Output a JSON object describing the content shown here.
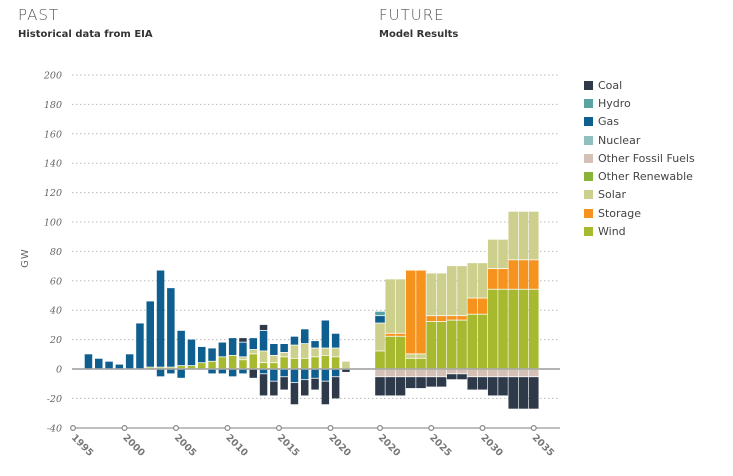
{
  "headings": {
    "past_title": "PAST",
    "past_subtitle": "Historical data from EIA",
    "future_title": "FUTURE",
    "future_subtitle": "Model Results"
  },
  "colors": {
    "Coal": "#2e3a4a",
    "Hydro": "#5aa3a3",
    "Gas": "#0e5e8f",
    "Nuclear": "#8fbfbf",
    "Other Fossil Fuels": "#d4c0b4",
    "Other Renewable": "#8ab33a",
    "Solar": "#cdd08c",
    "Storage": "#f5931e",
    "Wind": "#a7b92e"
  },
  "chart_data": {
    "type": "bar",
    "stacked": true,
    "ylabel": "GW",
    "ylim": [
      -40,
      200
    ],
    "yticks": [
      -40,
      -20,
      0,
      20,
      40,
      60,
      80,
      100,
      120,
      140,
      160,
      180,
      200
    ],
    "grid": true,
    "legend_position": "right",
    "legend": [
      "Coal",
      "Hydro",
      "Gas",
      "Nuclear",
      "Other Fossil Fuels",
      "Other Renewable",
      "Solar",
      "Storage",
      "Wind"
    ],
    "xticks_past": [
      1995,
      2000,
      2005,
      2010,
      2015,
      2020
    ],
    "xticks_future": [
      2020,
      2025,
      2030,
      2035
    ],
    "past": [
      {
        "year": 1996,
        "pos": [
          {
            "s": "Gas",
            "v": 10
          }
        ],
        "neg": []
      },
      {
        "year": 1997,
        "pos": [
          {
            "s": "Gas",
            "v": 7
          }
        ],
        "neg": []
      },
      {
        "year": 1998,
        "pos": [
          {
            "s": "Gas",
            "v": 5
          }
        ],
        "neg": []
      },
      {
        "year": 1999,
        "pos": [
          {
            "s": "Gas",
            "v": 3
          }
        ],
        "neg": []
      },
      {
        "year": 2000,
        "pos": [
          {
            "s": "Gas",
            "v": 10
          }
        ],
        "neg": []
      },
      {
        "year": 2001,
        "pos": [
          {
            "s": "Gas",
            "v": 31
          }
        ],
        "neg": []
      },
      {
        "year": 2002,
        "pos": [
          {
            "s": "Wind",
            "v": 1
          },
          {
            "s": "Gas",
            "v": 45
          }
        ],
        "neg": []
      },
      {
        "year": 2003,
        "pos": [
          {
            "s": "Wind",
            "v": 1
          },
          {
            "s": "Gas",
            "v": 66
          }
        ],
        "neg": [
          {
            "s": "Gas",
            "v": 5
          }
        ]
      },
      {
        "year": 2004,
        "pos": [
          {
            "s": "Wind",
            "v": 1
          },
          {
            "s": "Gas",
            "v": 54
          }
        ],
        "neg": [
          {
            "s": "Gas",
            "v": 3
          }
        ]
      },
      {
        "year": 2005,
        "pos": [
          {
            "s": "Wind",
            "v": 2
          },
          {
            "s": "Gas",
            "v": 24
          }
        ],
        "neg": [
          {
            "s": "Gas",
            "v": 6
          }
        ]
      },
      {
        "year": 2006,
        "pos": [
          {
            "s": "Wind",
            "v": 2
          },
          {
            "s": "Gas",
            "v": 18
          }
        ],
        "neg": []
      },
      {
        "year": 2007,
        "pos": [
          {
            "s": "Wind",
            "v": 4
          },
          {
            "s": "Gas",
            "v": 11
          }
        ],
        "neg": []
      },
      {
        "year": 2008,
        "pos": [
          {
            "s": "Wind",
            "v": 5
          },
          {
            "s": "Gas",
            "v": 9
          }
        ],
        "neg": [
          {
            "s": "Gas",
            "v": 3
          }
        ]
      },
      {
        "year": 2009,
        "pos": [
          {
            "s": "Wind",
            "v": 8
          },
          {
            "s": "Gas",
            "v": 10
          }
        ],
        "neg": [
          {
            "s": "Gas",
            "v": 3
          }
        ]
      },
      {
        "year": 2010,
        "pos": [
          {
            "s": "Wind",
            "v": 9
          },
          {
            "s": "Gas",
            "v": 12
          }
        ],
        "neg": [
          {
            "s": "Gas",
            "v": 5
          }
        ]
      },
      {
        "year": 2011,
        "pos": [
          {
            "s": "Wind",
            "v": 6
          },
          {
            "s": "Solar",
            "v": 2
          },
          {
            "s": "Gas",
            "v": 10
          },
          {
            "s": "Coal",
            "v": 3
          }
        ],
        "neg": [
          {
            "s": "Gas",
            "v": 3
          }
        ]
      },
      {
        "year": 2012,
        "pos": [
          {
            "s": "Wind",
            "v": 10
          },
          {
            "s": "Solar",
            "v": 3
          },
          {
            "s": "Gas",
            "v": 8
          }
        ],
        "neg": [
          {
            "s": "Coal",
            "v": 6
          }
        ]
      },
      {
        "year": 2013,
        "pos": [
          {
            "s": "Wind",
            "v": 4
          },
          {
            "s": "Solar",
            "v": 8
          },
          {
            "s": "Gas",
            "v": 14
          },
          {
            "s": "Coal",
            "v": 4
          }
        ],
        "neg": [
          {
            "s": "Gas",
            "v": 3
          },
          {
            "s": "Coal",
            "v": 15
          }
        ]
      },
      {
        "year": 2014,
        "pos": [
          {
            "s": "Wind",
            "v": 4
          },
          {
            "s": "Solar",
            "v": 5
          },
          {
            "s": "Gas",
            "v": 8
          }
        ],
        "neg": [
          {
            "s": "Gas",
            "v": 8
          },
          {
            "s": "Coal",
            "v": 10
          }
        ]
      },
      {
        "year": 2015,
        "pos": [
          {
            "s": "Wind",
            "v": 8
          },
          {
            "s": "Solar",
            "v": 3
          },
          {
            "s": "Gas",
            "v": 6
          }
        ],
        "neg": [
          {
            "s": "Gas",
            "v": 5
          },
          {
            "s": "Coal",
            "v": 9
          }
        ]
      },
      {
        "year": 2016,
        "pos": [
          {
            "s": "Wind",
            "v": 7
          },
          {
            "s": "Solar",
            "v": 9
          },
          {
            "s": "Gas",
            "v": 6
          }
        ],
        "neg": [
          {
            "s": "Gas",
            "v": 9
          },
          {
            "s": "Coal",
            "v": 15
          }
        ]
      },
      {
        "year": 2017,
        "pos": [
          {
            "s": "Wind",
            "v": 7
          },
          {
            "s": "Solar",
            "v": 10
          },
          {
            "s": "Gas",
            "v": 10
          }
        ],
        "neg": [
          {
            "s": "Gas",
            "v": 7
          },
          {
            "s": "Coal",
            "v": 11
          }
        ]
      },
      {
        "year": 2018,
        "pos": [
          {
            "s": "Wind",
            "v": 8
          },
          {
            "s": "Solar",
            "v": 6
          },
          {
            "s": "Gas",
            "v": 5
          }
        ],
        "neg": [
          {
            "s": "Gas",
            "v": 6
          },
          {
            "s": "Coal",
            "v": 8
          }
        ]
      },
      {
        "year": 2019,
        "pos": [
          {
            "s": "Wind",
            "v": 9
          },
          {
            "s": "Solar",
            "v": 5
          },
          {
            "s": "Gas",
            "v": 19
          }
        ],
        "neg": [
          {
            "s": "Gas",
            "v": 8
          },
          {
            "s": "Coal",
            "v": 16
          }
        ]
      },
      {
        "year": 2020,
        "pos": [
          {
            "s": "Wind",
            "v": 8
          },
          {
            "s": "Solar",
            "v": 6
          },
          {
            "s": "Gas",
            "v": 10
          }
        ],
        "neg": [
          {
            "s": "Gas",
            "v": 5
          },
          {
            "s": "Coal",
            "v": 15
          }
        ]
      },
      {
        "year": 2021,
        "pos": [
          {
            "s": "Solar",
            "v": 5
          }
        ],
        "neg": [
          {
            "s": "Coal",
            "v": 2
          }
        ]
      }
    ],
    "future": [
      {
        "year": 2020,
        "pos": [
          {
            "s": "Wind",
            "v": 12
          },
          {
            "s": "Solar",
            "v": 19
          },
          {
            "s": "Gas",
            "v": 5
          },
          {
            "s": "Hydro",
            "v": 3
          }
        ],
        "neg": [
          {
            "s": "Other Fossil Fuels",
            "v": 5
          },
          {
            "s": "Coal",
            "v": 13
          }
        ]
      },
      {
        "year": 2021,
        "pos": [
          {
            "s": "Wind",
            "v": 22
          },
          {
            "s": "Storage",
            "v": 2
          },
          {
            "s": "Solar",
            "v": 37
          }
        ],
        "neg": [
          {
            "s": "Other Fossil Fuels",
            "v": 5
          },
          {
            "s": "Coal",
            "v": 13
          }
        ]
      },
      {
        "year": 2022,
        "pos": [
          {
            "s": "Wind",
            "v": 22
          },
          {
            "s": "Storage",
            "v": 2
          },
          {
            "s": "Solar",
            "v": 37
          }
        ],
        "neg": [
          {
            "s": "Other Fossil Fuels",
            "v": 5
          },
          {
            "s": "Coal",
            "v": 13
          }
        ]
      },
      {
        "year": 2023,
        "pos": [
          {
            "s": "Wind",
            "v": 7
          },
          {
            "s": "Solar",
            "v": 3
          },
          {
            "s": "Storage",
            "v": 57
          }
        ],
        "neg": [
          {
            "s": "Other Fossil Fuels",
            "v": 5
          },
          {
            "s": "Coal",
            "v": 8
          }
        ]
      },
      {
        "year": 2024,
        "pos": [
          {
            "s": "Wind",
            "v": 7
          },
          {
            "s": "Solar",
            "v": 3
          },
          {
            "s": "Storage",
            "v": 57
          }
        ],
        "neg": [
          {
            "s": "Other Fossil Fuels",
            "v": 5
          },
          {
            "s": "Coal",
            "v": 8
          }
        ]
      },
      {
        "year": 2025,
        "pos": [
          {
            "s": "Wind",
            "v": 32
          },
          {
            "s": "Storage",
            "v": 4
          },
          {
            "s": "Solar",
            "v": 29
          }
        ],
        "neg": [
          {
            "s": "Other Fossil Fuels",
            "v": 5
          },
          {
            "s": "Coal",
            "v": 7
          }
        ]
      },
      {
        "year": 2026,
        "pos": [
          {
            "s": "Wind",
            "v": 32
          },
          {
            "s": "Storage",
            "v": 4
          },
          {
            "s": "Solar",
            "v": 29
          }
        ],
        "neg": [
          {
            "s": "Other Fossil Fuels",
            "v": 5
          },
          {
            "s": "Coal",
            "v": 7
          }
        ]
      },
      {
        "year": 2027,
        "pos": [
          {
            "s": "Wind",
            "v": 33
          },
          {
            "s": "Storage",
            "v": 3
          },
          {
            "s": "Solar",
            "v": 34
          }
        ],
        "neg": [
          {
            "s": "Other Fossil Fuels",
            "v": 3
          },
          {
            "s": "Coal",
            "v": 4
          }
        ]
      },
      {
        "year": 2028,
        "pos": [
          {
            "s": "Wind",
            "v": 33
          },
          {
            "s": "Storage",
            "v": 3
          },
          {
            "s": "Solar",
            "v": 34
          }
        ],
        "neg": [
          {
            "s": "Other Fossil Fuels",
            "v": 3
          },
          {
            "s": "Coal",
            "v": 4
          }
        ]
      },
      {
        "year": 2029,
        "pos": [
          {
            "s": "Wind",
            "v": 37
          },
          {
            "s": "Storage",
            "v": 11
          },
          {
            "s": "Solar",
            "v": 24
          }
        ],
        "neg": [
          {
            "s": "Other Fossil Fuels",
            "v": 5
          },
          {
            "s": "Coal",
            "v": 9
          }
        ]
      },
      {
        "year": 2030,
        "pos": [
          {
            "s": "Wind",
            "v": 37
          },
          {
            "s": "Storage",
            "v": 11
          },
          {
            "s": "Solar",
            "v": 24
          }
        ],
        "neg": [
          {
            "s": "Other Fossil Fuels",
            "v": 5
          },
          {
            "s": "Coal",
            "v": 9
          }
        ]
      },
      {
        "year": 2031,
        "pos": [
          {
            "s": "Wind",
            "v": 54
          },
          {
            "s": "Storage",
            "v": 14
          },
          {
            "s": "Solar",
            "v": 20
          }
        ],
        "neg": [
          {
            "s": "Other Fossil Fuels",
            "v": 5
          },
          {
            "s": "Coal",
            "v": 13
          }
        ]
      },
      {
        "year": 2032,
        "pos": [
          {
            "s": "Wind",
            "v": 54
          },
          {
            "s": "Storage",
            "v": 14
          },
          {
            "s": "Solar",
            "v": 20
          }
        ],
        "neg": [
          {
            "s": "Other Fossil Fuels",
            "v": 5
          },
          {
            "s": "Coal",
            "v": 13
          }
        ]
      },
      {
        "year": 2033,
        "pos": [
          {
            "s": "Wind",
            "v": 54
          },
          {
            "s": "Storage",
            "v": 20
          },
          {
            "s": "Solar",
            "v": 33
          }
        ],
        "neg": [
          {
            "s": "Other Fossil Fuels",
            "v": 5
          },
          {
            "s": "Coal",
            "v": 22
          }
        ]
      },
      {
        "year": 2034,
        "pos": [
          {
            "s": "Wind",
            "v": 54
          },
          {
            "s": "Storage",
            "v": 20
          },
          {
            "s": "Solar",
            "v": 33
          }
        ],
        "neg": [
          {
            "s": "Other Fossil Fuels",
            "v": 5
          },
          {
            "s": "Coal",
            "v": 22
          }
        ]
      },
      {
        "year": 2035,
        "pos": [
          {
            "s": "Wind",
            "v": 54
          },
          {
            "s": "Storage",
            "v": 20
          },
          {
            "s": "Solar",
            "v": 33
          }
        ],
        "neg": [
          {
            "s": "Other Fossil Fuels",
            "v": 5
          },
          {
            "s": "Coal",
            "v": 22
          }
        ]
      }
    ]
  }
}
